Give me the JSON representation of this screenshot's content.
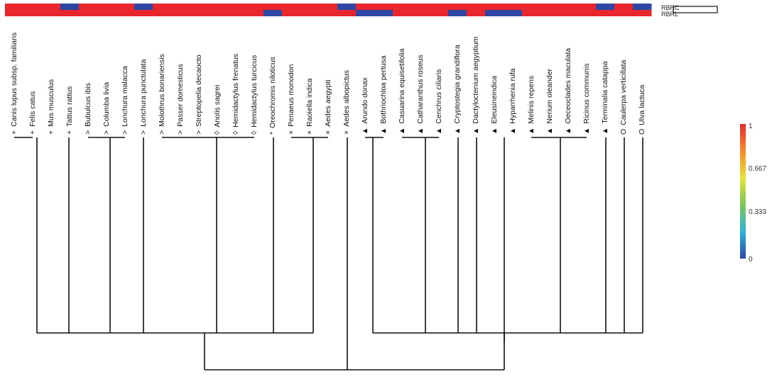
{
  "heatmap": {
    "row_labels": [
      "RBRC",
      "RBRL"
    ],
    "colors": {
      "high": "#e8262c",
      "low": "#2c47a6"
    },
    "blue_cells": {
      "RBRC": [
        3,
        7,
        18,
        32,
        34
      ],
      "RBRL": [
        14,
        19,
        20,
        24,
        26,
        27
      ]
    }
  },
  "leaves": [
    {
      "marker": "+",
      "name": "Canis lupus subsp. familiaris"
    },
    {
      "marker": "+",
      "name": "Felis catus"
    },
    {
      "marker": "+",
      "name": "Mus musculus"
    },
    {
      "marker": "+",
      "name": "Tattus rattus"
    },
    {
      "marker": ">",
      "name": "Bubulcus ibis"
    },
    {
      "marker": ">",
      "name": "Columba livia"
    },
    {
      "marker": ">",
      "name": "Lonchura malacca"
    },
    {
      "marker": ">",
      "name": "Lonchura punctulata"
    },
    {
      "marker": ">",
      "name": "Molothrus bonariensis"
    },
    {
      "marker": ">",
      "name": "Passer domesticus"
    },
    {
      "marker": ">",
      "name": "Streptopelia decaocto"
    },
    {
      "marker": "◊",
      "name": "Anolis sagrei"
    },
    {
      "marker": "◊",
      "name": "Hemidactylus frenatus"
    },
    {
      "marker": "◊",
      "name": "Hemidactylus turcicus"
    },
    {
      "marker": "*",
      "name": "Oreochromis niloticus"
    },
    {
      "marker": "×",
      "name": "Penaeus monodon"
    },
    {
      "marker": "×",
      "name": "Raoiella indica"
    },
    {
      "marker": "×",
      "name": "Aedes aegypti"
    },
    {
      "marker": "×",
      "name": "Aedes albopictus"
    },
    {
      "marker": "▲",
      "name": "Arundo donax"
    },
    {
      "marker": "▲",
      "name": "Bothriochloa pertusa"
    },
    {
      "marker": "▲",
      "name": "Casuarina equisetifolia"
    },
    {
      "marker": "▲",
      "name": "Catharanthus roseus"
    },
    {
      "marker": "▲",
      "name": "Cenchrus ciliaris"
    },
    {
      "marker": "▲",
      "name": "Cryptostegia grandiflora"
    },
    {
      "marker": "▲",
      "name": "Dactyloctenium aegyptium"
    },
    {
      "marker": "▲",
      "name": "Eleusineindica"
    },
    {
      "marker": "▲",
      "name": "Hyparrhenia rufa"
    },
    {
      "marker": "▲",
      "name": "Melinis repens"
    },
    {
      "marker": "▲",
      "name": "Nerium oleander"
    },
    {
      "marker": "▲",
      "name": "Oeceoclades maculata"
    },
    {
      "marker": "▲",
      "name": "Ricinus communis"
    },
    {
      "marker": "▲",
      "name": "Terminalia catappa"
    },
    {
      "marker": "O",
      "name": "Caulerpa verticillata"
    },
    {
      "marker": "O",
      "name": "Ulva lactuca"
    }
  ],
  "colorbar": {
    "ticks": [
      "1",
      "0.667",
      "0.333",
      "0"
    ],
    "stops": [
      "#e8262c",
      "#f58a2a",
      "#e8e23a",
      "#7cc85a",
      "#2cb4d6",
      "#2c47a6"
    ]
  }
}
